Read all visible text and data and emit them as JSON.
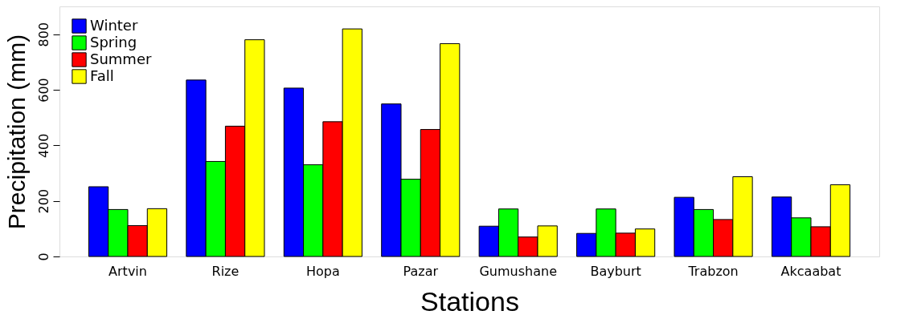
{
  "chart_data": {
    "type": "bar",
    "xlabel": "Stations",
    "ylabel": "Precipitation (mm)",
    "categories": [
      "Artvin",
      "Rize",
      "Hopa",
      "Pazar",
      "Gumushane",
      "Bayburt",
      "Trabzon",
      "Akcaabat"
    ],
    "series": [
      {
        "name": "Winter",
        "color": "#0000ff",
        "values": [
          251,
          635,
          606,
          549,
          109,
          83,
          213,
          214
        ]
      },
      {
        "name": "Spring",
        "color": "#00ff00",
        "values": [
          169,
          342,
          330,
          278,
          171,
          171,
          169,
          139
        ]
      },
      {
        "name": "Summer",
        "color": "#ff0000",
        "values": [
          111,
          469,
          485,
          457,
          70,
          84,
          133,
          107
        ]
      },
      {
        "name": "Fall",
        "color": "#ffff00",
        "values": [
          172,
          780,
          819,
          766,
          110,
          99,
          287,
          258
        ]
      }
    ],
    "ylim": [
      0,
      900
    ],
    "yticks": [
      0,
      200,
      400,
      600,
      800
    ],
    "grid": false,
    "legend": "top left"
  }
}
